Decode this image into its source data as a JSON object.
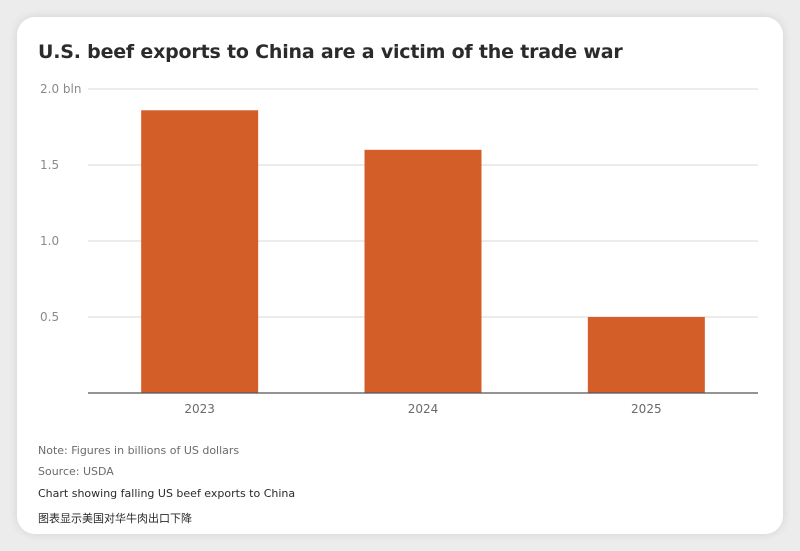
{
  "chart_data": {
    "type": "bar",
    "title": "U.S. beef exports to China are a victim of the trade war",
    "categories": [
      "2023",
      "2024",
      "2025"
    ],
    "values": [
      1.86,
      1.6,
      0.5
    ],
    "ylim": [
      0,
      2.0
    ],
    "yticks": [
      0.5,
      1.0,
      1.5,
      2.0
    ],
    "ytick_labels": [
      "0.5",
      "1.0",
      "1.5",
      "2.0 bln"
    ],
    "xlabel": "",
    "ylabel": "",
    "grid": true,
    "bar_color": "#d35e27"
  },
  "footer": {
    "note": "Note: Figures in billions of US dollars",
    "source": "Source: USDA",
    "caption": "Chart showing falling US beef exports to China",
    "caption_zh": "图表显示美国对华牛肉出口下降"
  }
}
